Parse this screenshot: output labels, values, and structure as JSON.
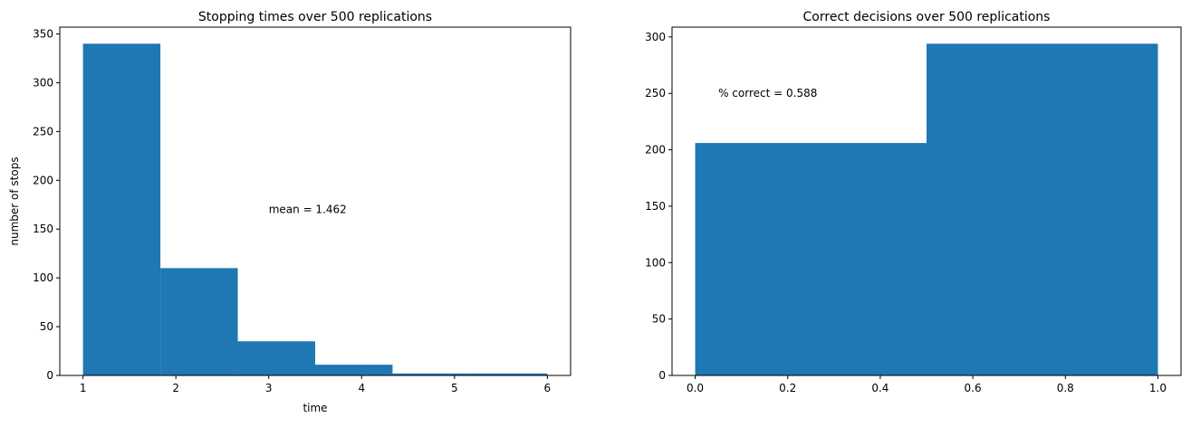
{
  "chart_data": [
    {
      "type": "bar",
      "title": "Stopping times over 500 replications",
      "xlabel": "time",
      "ylabel": "number of stops",
      "bin_edges": [
        1,
        1.8333,
        2.6667,
        3.5,
        4.3333,
        5.1667,
        6
      ],
      "values": [
        340,
        110,
        35,
        11,
        2,
        2
      ],
      "xlim": [
        0.75,
        6.25
      ],
      "ylim": [
        0,
        357
      ],
      "xticks": [
        1,
        2,
        3,
        4,
        5,
        6
      ],
      "yticks": [
        0,
        50,
        100,
        150,
        200,
        250,
        300,
        350
      ],
      "annotation": {
        "text": "mean = 1.462",
        "x": 3.0,
        "y": 170
      },
      "color": "#1f77b4",
      "grid": false
    },
    {
      "type": "bar",
      "title": "Correct decisions over 500 replications",
      "xlabel": "",
      "ylabel": "",
      "bin_edges": [
        0,
        0.5,
        1
      ],
      "values": [
        206,
        294
      ],
      "xlim": [
        -0.05,
        1.05
      ],
      "ylim": [
        0,
        308.7
      ],
      "xticks": [
        "0.0",
        "0.2",
        "0.4",
        "0.6",
        "0.8",
        "1.0"
      ],
      "yticks": [
        0,
        50,
        100,
        150,
        200,
        250,
        300
      ],
      "annotation": {
        "text": "% correct = 0.588",
        "x": 0.05,
        "y": 250
      },
      "color": "#1f77b4",
      "grid": false
    }
  ]
}
